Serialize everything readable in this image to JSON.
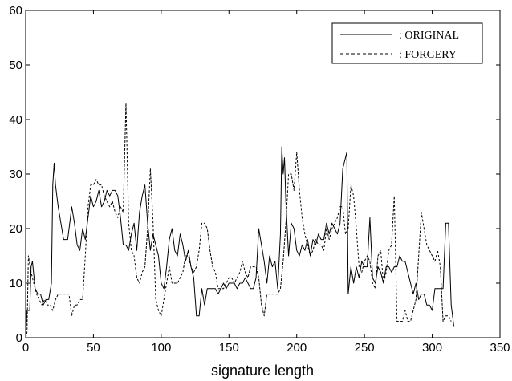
{
  "chart_data": {
    "type": "line",
    "title": "",
    "xlabel": "signature length",
    "ylabel": "",
    "xlim": [
      0,
      350
    ],
    "ylim": [
      0,
      60
    ],
    "xticks": [
      0,
      50,
      100,
      150,
      200,
      250,
      300,
      350
    ],
    "yticks": [
      0,
      10,
      20,
      30,
      40,
      50,
      60
    ],
    "legend": {
      "placement": "top-right",
      "entries": [
        {
          "label": ": ORIGINAL",
          "style": "solid"
        },
        {
          "label": ": FORGERY",
          "style": "dashed"
        }
      ]
    },
    "series": [
      {
        "name": "ORIGINAL",
        "style": "solid",
        "color": "#000000",
        "points": [
          [
            0,
            0
          ],
          [
            1,
            5
          ],
          [
            3,
            5
          ],
          [
            4,
            13
          ],
          [
            5,
            14
          ],
          [
            7,
            9
          ],
          [
            9,
            8
          ],
          [
            11,
            8
          ],
          [
            13,
            6
          ],
          [
            15,
            7
          ],
          [
            17,
            7
          ],
          [
            19,
            10
          ],
          [
            20,
            28
          ],
          [
            21,
            32
          ],
          [
            22,
            28
          ],
          [
            24,
            24
          ],
          [
            26,
            21
          ],
          [
            28,
            18
          ],
          [
            31,
            18
          ],
          [
            33,
            22
          ],
          [
            34,
            24
          ],
          [
            36,
            21
          ],
          [
            38,
            17
          ],
          [
            40,
            16
          ],
          [
            42,
            20
          ],
          [
            44,
            18
          ],
          [
            46,
            22
          ],
          [
            48,
            26
          ],
          [
            50,
            24
          ],
          [
            52,
            25
          ],
          [
            54,
            27
          ],
          [
            56,
            24
          ],
          [
            58,
            25
          ],
          [
            60,
            27
          ],
          [
            62,
            26
          ],
          [
            64,
            27
          ],
          [
            66,
            27
          ],
          [
            68,
            26
          ],
          [
            70,
            22
          ],
          [
            72,
            17
          ],
          [
            74,
            17
          ],
          [
            76,
            16
          ],
          [
            78,
            19
          ],
          [
            80,
            21
          ],
          [
            82,
            16
          ],
          [
            84,
            23
          ],
          [
            86,
            26
          ],
          [
            88,
            28
          ],
          [
            90,
            21
          ],
          [
            92,
            16
          ],
          [
            94,
            19
          ],
          [
            96,
            17
          ],
          [
            98,
            15
          ],
          [
            100,
            10
          ],
          [
            102,
            9
          ],
          [
            104,
            13
          ],
          [
            106,
            18
          ],
          [
            108,
            20
          ],
          [
            110,
            16
          ],
          [
            112,
            15
          ],
          [
            114,
            19
          ],
          [
            116,
            17
          ],
          [
            118,
            14
          ],
          [
            120,
            16
          ],
          [
            122,
            13
          ],
          [
            124,
            11
          ],
          [
            126,
            4
          ],
          [
            128,
            4
          ],
          [
            130,
            9
          ],
          [
            132,
            6
          ],
          [
            134,
            9
          ],
          [
            136,
            9
          ],
          [
            138,
            9
          ],
          [
            140,
            9
          ],
          [
            142,
            8
          ],
          [
            144,
            9
          ],
          [
            146,
            10
          ],
          [
            148,
            9
          ],
          [
            150,
            10
          ],
          [
            152,
            10
          ],
          [
            154,
            10
          ],
          [
            156,
            9
          ],
          [
            158,
            10
          ],
          [
            160,
            10
          ],
          [
            162,
            11
          ],
          [
            164,
            10
          ],
          [
            166,
            9
          ],
          [
            168,
            9
          ],
          [
            170,
            11
          ],
          [
            172,
            20
          ],
          [
            174,
            17
          ],
          [
            176,
            14
          ],
          [
            178,
            10
          ],
          [
            180,
            15
          ],
          [
            182,
            13
          ],
          [
            184,
            14
          ],
          [
            186,
            9
          ],
          [
            188,
            19
          ],
          [
            189,
            35
          ],
          [
            190,
            30
          ],
          [
            191,
            33
          ],
          [
            192,
            25
          ],
          [
            194,
            15
          ],
          [
            196,
            21
          ],
          [
            198,
            20
          ],
          [
            200,
            16
          ],
          [
            202,
            15
          ],
          [
            204,
            17
          ],
          [
            206,
            16
          ],
          [
            208,
            18
          ],
          [
            210,
            15
          ],
          [
            212,
            18
          ],
          [
            214,
            17
          ],
          [
            216,
            19
          ],
          [
            218,
            18
          ],
          [
            220,
            18
          ],
          [
            222,
            21
          ],
          [
            224,
            19
          ],
          [
            226,
            21
          ],
          [
            228,
            20
          ],
          [
            230,
            19
          ],
          [
            232,
            21
          ],
          [
            234,
            31
          ],
          [
            236,
            33
          ],
          [
            237,
            34
          ],
          [
            238,
            8
          ],
          [
            240,
            13
          ],
          [
            242,
            10
          ],
          [
            244,
            13
          ],
          [
            246,
            11
          ],
          [
            248,
            14
          ],
          [
            250,
            13
          ],
          [
            252,
            13
          ],
          [
            254,
            22
          ],
          [
            256,
            11
          ],
          [
            258,
            10
          ],
          [
            260,
            13
          ],
          [
            262,
            12
          ],
          [
            264,
            10
          ],
          [
            266,
            13
          ],
          [
            268,
            13
          ],
          [
            270,
            12
          ],
          [
            272,
            13
          ],
          [
            274,
            13
          ],
          [
            276,
            15
          ],
          [
            278,
            14
          ],
          [
            280,
            14
          ],
          [
            282,
            12
          ],
          [
            284,
            10
          ],
          [
            286,
            8
          ],
          [
            288,
            10
          ],
          [
            290,
            7
          ],
          [
            292,
            8
          ],
          [
            294,
            8
          ],
          [
            296,
            6
          ],
          [
            298,
            6
          ],
          [
            300,
            5
          ],
          [
            302,
            9
          ],
          [
            304,
            9
          ],
          [
            306,
            9
          ],
          [
            308,
            9
          ],
          [
            310,
            21
          ],
          [
            312,
            21
          ],
          [
            314,
            6
          ],
          [
            316,
            2
          ]
        ]
      },
      {
        "name": "FORGERY",
        "style": "dashed",
        "color": "#000000",
        "points": [
          [
            0,
            0
          ],
          [
            1,
            1
          ],
          [
            2,
            15
          ],
          [
            4,
            12
          ],
          [
            6,
            10
          ],
          [
            8,
            8
          ],
          [
            10,
            7
          ],
          [
            12,
            6
          ],
          [
            14,
            7
          ],
          [
            16,
            6
          ],
          [
            18,
            6
          ],
          [
            20,
            5
          ],
          [
            22,
            7
          ],
          [
            24,
            8
          ],
          [
            26,
            8
          ],
          [
            28,
            8
          ],
          [
            30,
            8
          ],
          [
            32,
            8
          ],
          [
            34,
            4
          ],
          [
            36,
            6
          ],
          [
            38,
            6
          ],
          [
            40,
            7
          ],
          [
            42,
            7
          ],
          [
            44,
            15
          ],
          [
            46,
            24
          ],
          [
            48,
            28
          ],
          [
            50,
            28
          ],
          [
            52,
            29
          ],
          [
            54,
            28
          ],
          [
            56,
            28
          ],
          [
            58,
            26
          ],
          [
            60,
            25
          ],
          [
            62,
            24
          ],
          [
            64,
            25
          ],
          [
            66,
            23
          ],
          [
            68,
            22
          ],
          [
            70,
            24
          ],
          [
            72,
            23
          ],
          [
            74,
            43
          ],
          [
            76,
            21
          ],
          [
            78,
            16
          ],
          [
            80,
            15
          ],
          [
            82,
            11
          ],
          [
            84,
            10
          ],
          [
            86,
            12
          ],
          [
            88,
            13
          ],
          [
            90,
            20
          ],
          [
            92,
            31
          ],
          [
            94,
            21
          ],
          [
            96,
            7
          ],
          [
            98,
            5
          ],
          [
            100,
            4
          ],
          [
            102,
            7
          ],
          [
            104,
            10
          ],
          [
            106,
            13
          ],
          [
            108,
            10
          ],
          [
            110,
            10
          ],
          [
            112,
            10
          ],
          [
            114,
            11
          ],
          [
            116,
            12
          ],
          [
            118,
            15
          ],
          [
            120,
            15
          ],
          [
            122,
            13
          ],
          [
            124,
            12
          ],
          [
            126,
            13
          ],
          [
            128,
            16
          ],
          [
            130,
            21
          ],
          [
            132,
            21
          ],
          [
            134,
            20
          ],
          [
            136,
            16
          ],
          [
            138,
            13
          ],
          [
            140,
            12
          ],
          [
            142,
            9
          ],
          [
            144,
            9
          ],
          [
            146,
            9
          ],
          [
            148,
            10
          ],
          [
            150,
            11
          ],
          [
            152,
            11
          ],
          [
            154,
            10
          ],
          [
            156,
            11
          ],
          [
            158,
            12
          ],
          [
            160,
            14
          ],
          [
            162,
            12
          ],
          [
            164,
            11
          ],
          [
            166,
            13
          ],
          [
            168,
            13
          ],
          [
            170,
            13
          ],
          [
            172,
            11
          ],
          [
            174,
            6
          ],
          [
            176,
            4
          ],
          [
            178,
            8
          ],
          [
            180,
            8
          ],
          [
            182,
            8
          ],
          [
            184,
            8
          ],
          [
            186,
            8
          ],
          [
            188,
            9
          ],
          [
            190,
            14
          ],
          [
            192,
            21
          ],
          [
            194,
            30
          ],
          [
            196,
            30
          ],
          [
            198,
            27
          ],
          [
            200,
            34
          ],
          [
            202,
            27
          ],
          [
            204,
            22
          ],
          [
            206,
            19
          ],
          [
            208,
            17
          ],
          [
            210,
            15
          ],
          [
            212,
            16
          ],
          [
            214,
            18
          ],
          [
            216,
            17
          ],
          [
            218,
            17
          ],
          [
            220,
            16
          ],
          [
            222,
            20
          ],
          [
            224,
            18
          ],
          [
            226,
            20
          ],
          [
            228,
            21
          ],
          [
            230,
            22
          ],
          [
            232,
            24
          ],
          [
            234,
            24
          ],
          [
            236,
            19
          ],
          [
            238,
            20
          ],
          [
            240,
            28
          ],
          [
            242,
            26
          ],
          [
            244,
            20
          ],
          [
            246,
            13
          ],
          [
            248,
            12
          ],
          [
            250,
            14
          ],
          [
            252,
            15
          ],
          [
            254,
            14
          ],
          [
            256,
            10
          ],
          [
            258,
            9
          ],
          [
            260,
            15
          ],
          [
            262,
            16
          ],
          [
            264,
            10
          ],
          [
            266,
            12
          ],
          [
            268,
            16
          ],
          [
            270,
            17
          ],
          [
            272,
            26
          ],
          [
            274,
            3
          ],
          [
            276,
            3
          ],
          [
            278,
            3
          ],
          [
            280,
            5
          ],
          [
            282,
            3
          ],
          [
            284,
            3
          ],
          [
            286,
            5
          ],
          [
            288,
            7
          ],
          [
            290,
            15
          ],
          [
            292,
            23
          ],
          [
            294,
            20
          ],
          [
            296,
            17
          ],
          [
            298,
            16
          ],
          [
            300,
            15
          ],
          [
            302,
            14
          ],
          [
            304,
            16
          ],
          [
            306,
            13
          ],
          [
            308,
            3
          ],
          [
            310,
            4
          ],
          [
            312,
            4
          ],
          [
            314,
            3
          ]
        ]
      }
    ]
  }
}
